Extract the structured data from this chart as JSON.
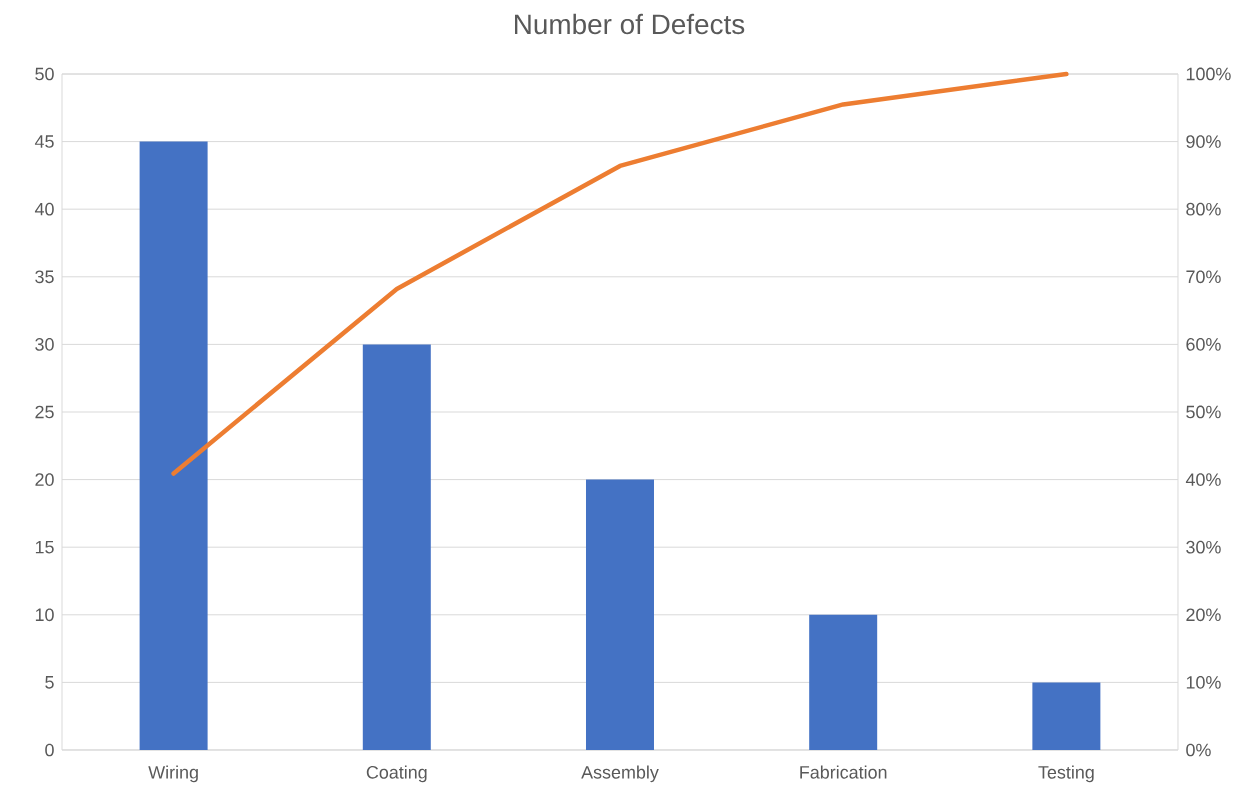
{
  "chart_data": {
    "type": "bar",
    "title": "Number of Defects",
    "categories": [
      "Wiring",
      "Coating",
      "Assembly",
      "Fabrication",
      "Testing"
    ],
    "series": [
      {
        "color": "#4472c4",
        "values": [
          45,
          30,
          20,
          10,
          5
        ]
      },
      {
        "type": "line",
        "axis": "y2",
        "color": "#ed7d31",
        "values": [
          40.9,
          68.2,
          86.4,
          95.5,
          100
        ]
      }
    ],
    "ylim": [
      0,
      50
    ],
    "yticks": [
      0,
      5,
      10,
      15,
      20,
      25,
      30,
      35,
      40,
      45,
      50
    ],
    "y2lim": [
      0,
      100
    ],
    "y2ticks": [
      {
        "value": 0,
        "label": "0%"
      },
      {
        "value": 10,
        "label": "10%"
      },
      {
        "value": 20,
        "label": "20%"
      },
      {
        "value": 30,
        "label": "30%"
      },
      {
        "value": 40,
        "label": "40%"
      },
      {
        "value": 50,
        "label": "50%"
      },
      {
        "value": 60,
        "label": "60%"
      },
      {
        "value": 70,
        "label": "70%"
      },
      {
        "value": 80,
        "label": "80%"
      },
      {
        "value": 90,
        "label": "90%"
      },
      {
        "value": 100,
        "label": "100%"
      }
    ],
    "grid": "y",
    "marker": "none"
  }
}
